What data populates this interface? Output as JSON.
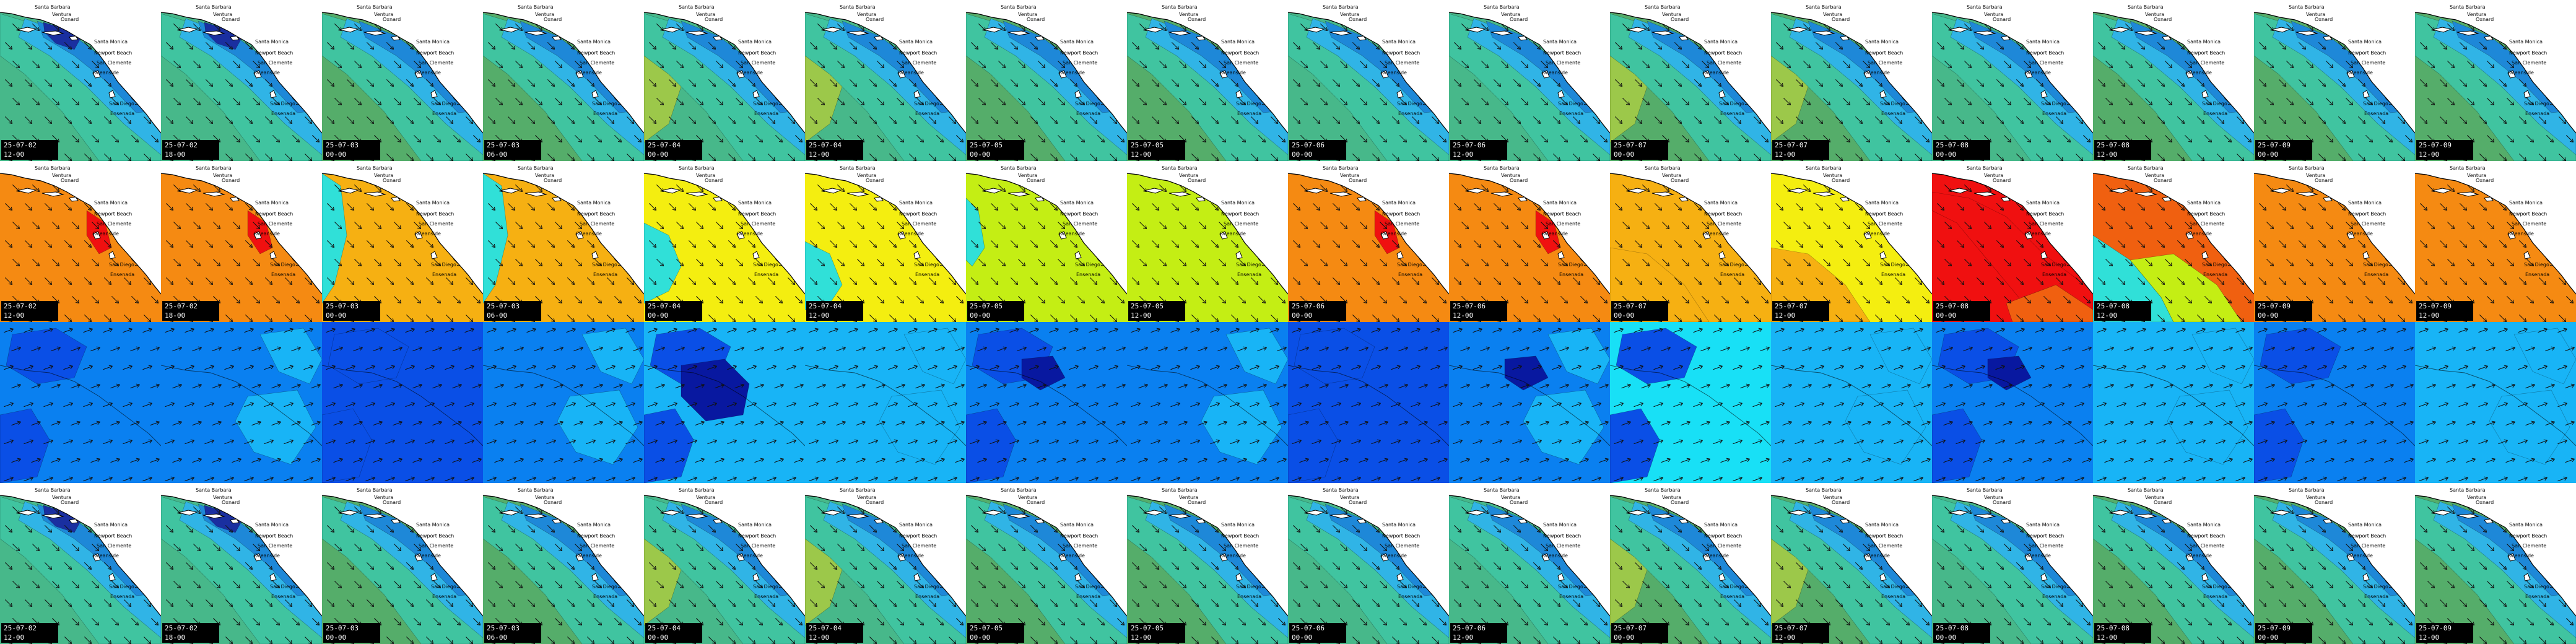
{
  "grid": {
    "columns": 16,
    "rows": [
      {
        "variable": "swell",
        "frames": [
          {
            "date": "25-07-02",
            "time": "12-00"
          },
          {
            "date": "25-07-02",
            "time": "18-00"
          },
          {
            "date": "25-07-03",
            "time": "00-00"
          },
          {
            "date": "25-07-03",
            "time": "06-00"
          },
          {
            "date": "25-07-04",
            "time": "00-00"
          },
          {
            "date": "25-07-04",
            "time": "12-00"
          },
          {
            "date": "25-07-05",
            "time": "00-00"
          },
          {
            "date": "25-07-05",
            "time": "12-00"
          },
          {
            "date": "25-07-06",
            "time": "00-00"
          },
          {
            "date": "25-07-06",
            "time": "12-00"
          },
          {
            "date": "25-07-07",
            "time": "00-00"
          },
          {
            "date": "25-07-07",
            "time": "12-00"
          },
          {
            "date": "25-07-08",
            "time": "00-00"
          },
          {
            "date": "25-07-08",
            "time": "12-00"
          },
          {
            "date": "25-07-09",
            "time": "00-00"
          },
          {
            "date": "25-07-09",
            "time": "12-00"
          }
        ]
      },
      {
        "variable": "period",
        "frames": [
          {
            "date": "25-07-02",
            "time": "12-00"
          },
          {
            "date": "25-07-02",
            "time": "18-00"
          },
          {
            "date": "25-07-03",
            "time": "00-00"
          },
          {
            "date": "25-07-03",
            "time": "06-00"
          },
          {
            "date": "25-07-04",
            "time": "00-00"
          },
          {
            "date": "25-07-04",
            "time": "12-00"
          },
          {
            "date": "25-07-05",
            "time": "00-00"
          },
          {
            "date": "25-07-05",
            "time": "12-00"
          },
          {
            "date": "25-07-06",
            "time": "00-00"
          },
          {
            "date": "25-07-06",
            "time": "12-00"
          },
          {
            "date": "25-07-07",
            "time": "00-00"
          },
          {
            "date": "25-07-07",
            "time": "12-00"
          },
          {
            "date": "25-07-08",
            "time": "00-00"
          },
          {
            "date": "25-07-08",
            "time": "12-00"
          },
          {
            "date": "25-07-09",
            "time": "00-00"
          },
          {
            "date": "25-07-09",
            "time": "12-00"
          }
        ]
      },
      {
        "variable": "wind"
      },
      {
        "variable": "swell",
        "frames": [
          {
            "date": "25-07-02",
            "time": "12-00"
          },
          {
            "date": "25-07-02",
            "time": "18-00"
          },
          {
            "date": "25-07-03",
            "time": "00-00"
          },
          {
            "date": "25-07-03",
            "time": "06-00"
          },
          {
            "date": "25-07-04",
            "time": "00-00"
          },
          {
            "date": "25-07-04",
            "time": "12-00"
          },
          {
            "date": "25-07-05",
            "time": "00-00"
          },
          {
            "date": "25-07-05",
            "time": "12-00"
          },
          {
            "date": "25-07-06",
            "time": "00-00"
          },
          {
            "date": "25-07-06",
            "time": "12-00"
          },
          {
            "date": "25-07-07",
            "time": "00-00"
          },
          {
            "date": "25-07-07",
            "time": "12-00"
          },
          {
            "date": "25-07-08",
            "time": "00-00"
          },
          {
            "date": "25-07-08",
            "time": "12-00"
          },
          {
            "date": "25-07-09",
            "time": "00-00"
          },
          {
            "date": "25-07-09",
            "time": "12-00"
          }
        ]
      }
    ]
  },
  "place_labels": [
    "Santa Barbara",
    "Ventura",
    "Oxnard",
    "Santa Monica",
    "Newport Beach",
    "San Clemente",
    "Oceanside",
    "San Diego",
    "Ensenada"
  ],
  "palettes": {
    "swell": {
      "deep": "#1a2fa0",
      "mid": "#1e88d8",
      "light": "#30b4e6",
      "aqua": "#40c4a0",
      "teal": "#47b88a",
      "green": "#55ad6a",
      "lime": "#9cc84a"
    },
    "period": {
      "orange": "#f58a12",
      "amber": "#f6b012",
      "yellow": "#f4ee10",
      "lime": "#c4ee14",
      "red": "#f01010",
      "cyan": "#30e0d8",
      "deep_orange": "#f06010"
    },
    "wind": {
      "darkest": "#0818a0",
      "dark": "#0a4fe6",
      "mid": "#0a80f0",
      "light": "#18b4f6",
      "cyan": "#18e0f6"
    },
    "land": "#ffffff",
    "coast": "#000000",
    "arrow": "#111111"
  }
}
